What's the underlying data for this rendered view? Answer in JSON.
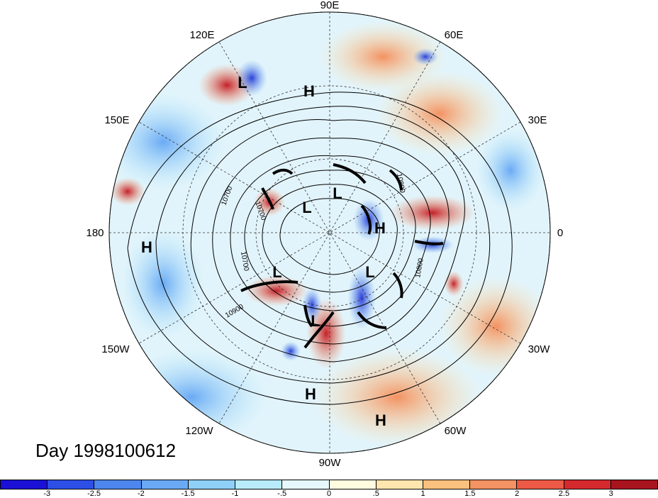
{
  "title": "Day 1998100612",
  "lon_labels": {
    "n": "90E",
    "ne1": "60E",
    "ne2": "30E",
    "e": "0",
    "se1": "30W",
    "se2": "60W",
    "s": "90W",
    "sw1": "120W",
    "sw2": "150W",
    "w": "180",
    "nw1": "150E",
    "nw2": "120E"
  },
  "contour_labels": [
    "10700",
    "10700",
    "10900",
    "10800",
    "10800",
    "10700",
    "10900"
  ],
  "pressure_centers": [
    "H",
    "H",
    "L",
    "L",
    "L",
    "H",
    "L",
    "L",
    "L",
    "H",
    "H"
  ],
  "colorbar": {
    "colors": [
      "#1a10d6",
      "#2d4fe6",
      "#4d86ee",
      "#6aaaf4",
      "#8fd0f8",
      "#b8ecfc",
      "#e6f8fc",
      "#fffbe0",
      "#fde5ad",
      "#f9c07e",
      "#f39262",
      "#ec5a46",
      "#d42a2e",
      "#a8141e"
    ],
    "ticks": [
      "-3",
      "-2.5",
      "-2",
      "-1.5",
      "-1",
      "-.5",
      "0",
      ".5",
      "1",
      "1.5",
      "2",
      "2.5",
      "3"
    ]
  }
}
